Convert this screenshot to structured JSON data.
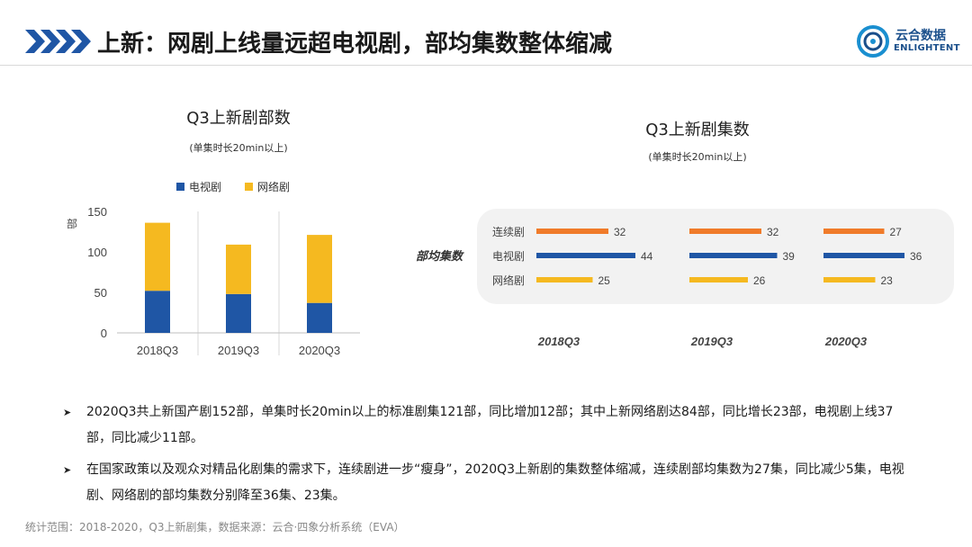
{
  "header": {
    "title": "上新：网剧上线量远超电视剧，部均集数整体缩减",
    "logo_cn": "云合数据",
    "logo_en": "ENLIGHTENT"
  },
  "colors": {
    "tv": "#1f56a5",
    "web": "#f5b920",
    "serial": "#f07b2a",
    "accent_blue": "#1a4f8b"
  },
  "icons": [
    "chevron-right-icon",
    "logo-icon",
    "bullet-arrow-icon"
  ],
  "chart_data": [
    {
      "type": "bar",
      "stacked": true,
      "title": "Q3上新剧部数",
      "subtitle": "(单集时长20min以上)",
      "ylabel": "部",
      "ylim": [
        0,
        150
      ],
      "yticks": [
        0,
        50,
        100,
        150
      ],
      "categories": [
        "2018Q3",
        "2019Q3",
        "2020Q3"
      ],
      "series": [
        {
          "name": "电视剧",
          "values": [
            52,
            48,
            37
          ]
        },
        {
          "name": "网络剧",
          "values": [
            84,
            61,
            84
          ]
        }
      ],
      "grid": false,
      "legend": "top"
    },
    {
      "type": "bar",
      "orientation": "horizontal",
      "title": "Q3上新剧集数",
      "subtitle": "(单集时长20min以上)",
      "row_group_label": "部均集数",
      "categories": [
        "连续剧",
        "电视剧",
        "网络剧"
      ],
      "panels": [
        "2018Q3",
        "2019Q3",
        "2020Q3"
      ],
      "series": [
        {
          "name": "连续剧",
          "values": [
            32,
            32,
            27
          ]
        },
        {
          "name": "电视剧",
          "values": [
            44,
            39,
            36
          ]
        },
        {
          "name": "网络剧",
          "values": [
            25,
            26,
            23
          ]
        }
      ]
    }
  ],
  "bullets": [
    "2020Q3共上新国产剧152部，单集时长20min以上的标准剧集121部，同比增加12部；其中上新网络剧达84部，同比增长23部，电视剧上线37部，同比减少11部。",
    "在国家政策以及观众对精品化剧集的需求下，连续剧进一步“瘦身”，2020Q3上新剧的集数整体缩减，连续剧部均集数为27集，同比减少5集，电视剧、网络剧的部均集数分别降至36集、23集。"
  ],
  "footer": "统计范围：2018-2020，Q3上新剧集，数据来源：云合·四象分析系统（EVA）"
}
